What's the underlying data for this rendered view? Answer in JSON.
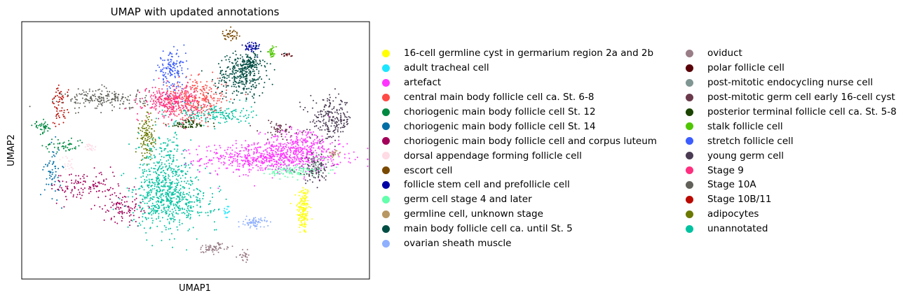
{
  "chart_data": {
    "type": "scatter",
    "title": "UMAP with updated annotations",
    "xlabel": "UMAP1",
    "ylabel": "UMAP2",
    "xlim": [
      0,
      100
    ],
    "ylim": [
      0,
      100
    ],
    "ticks": false,
    "legend_placement": "right",
    "legend_columns": 2,
    "series": [
      {
        "name": "16-cell germline cyst in germarium region 2a and 2b",
        "color": "#ffff00",
        "clusters": [
          {
            "x": 81,
            "y": 27,
            "sx": 0.9,
            "sy": 5,
            "n": 160
          }
        ]
      },
      {
        "name": "adult tracheal cell",
        "color": "#1ce6ff",
        "clusters": [
          {
            "x": 59,
            "y": 26,
            "sx": 0.5,
            "sy": 1.5,
            "n": 15
          }
        ]
      },
      {
        "name": "artefact",
        "color": "#ff34ff",
        "clusters": [
          {
            "x": 72,
            "y": 47,
            "sx": 10,
            "sy": 2.8,
            "n": 700
          },
          {
            "x": 80,
            "y": 53,
            "sx": 5,
            "sy": 3,
            "n": 200
          }
        ]
      },
      {
        "name": "central main body follicle cell ca. St. 6-8",
        "color": "#ff4a46",
        "clusters": [
          {
            "x": 50,
            "y": 70,
            "sx": 4.5,
            "sy": 4,
            "n": 300
          }
        ]
      },
      {
        "name": "choriogenic main body follicle cell St. 12",
        "color": "#008941",
        "clusters": [
          {
            "x": 6,
            "y": 59,
            "sx": 1.4,
            "sy": 1.2,
            "n": 40
          },
          {
            "x": 12,
            "y": 52,
            "sx": 3,
            "sy": 1.5,
            "n": 50
          }
        ]
      },
      {
        "name": "choriogenic main body follicle cell St. 14",
        "color": "#006fa6",
        "clusters": [
          {
            "x": 9,
            "y": 42,
            "sx": 1.2,
            "sy": 5,
            "n": 60
          }
        ]
      },
      {
        "name": "choriogenic main body follicle cell and corpus luteum",
        "color": "#a30059",
        "clusters": [
          {
            "x": 18,
            "y": 36,
            "sx": 5,
            "sy": 3,
            "n": 120
          },
          {
            "x": 29,
            "y": 28,
            "sx": 3,
            "sy": 3,
            "n": 100
          }
        ]
      },
      {
        "name": "dorsal appendage forming follicle cell",
        "color": "#ffdbe5",
        "clusters": [
          {
            "x": 20,
            "y": 51,
            "sx": 0.8,
            "sy": 0.8,
            "n": 20
          },
          {
            "x": 13,
            "y": 45,
            "sx": 1,
            "sy": 1.5,
            "n": 20
          }
        ]
      },
      {
        "name": "escort cell",
        "color": "#7a4900",
        "clusters": [
          {
            "x": 60,
            "y": 95,
            "sx": 1.2,
            "sy": 1,
            "n": 40
          }
        ]
      },
      {
        "name": "follicle stem cell and prefollicle cell",
        "color": "#0000a6",
        "clusters": [
          {
            "x": 66,
            "y": 90,
            "sx": 1.3,
            "sy": 1.4,
            "n": 50
          }
        ]
      },
      {
        "name": "germ cell stage 4 and later",
        "color": "#63ffac",
        "clusters": [
          {
            "x": 79,
            "y": 42,
            "sx": 4,
            "sy": 1.2,
            "n": 120
          }
        ]
      },
      {
        "name": "germline cell, unknown stage",
        "color": "#b79762",
        "clusters": [
          {
            "x": 90,
            "y": 49,
            "sx": 0.8,
            "sy": 0.7,
            "n": 20
          }
        ]
      },
      {
        "name": "main body follicle cell ca. until St. 5",
        "color": "#004d43",
        "clusters": [
          {
            "x": 63,
            "y": 79,
            "sx": 3.5,
            "sy": 4,
            "n": 300
          },
          {
            "x": 66,
            "y": 84,
            "sx": 2,
            "sy": 2,
            "n": 100
          }
        ]
      },
      {
        "name": "ovarian sheath muscle",
        "color": "#8fb0ff",
        "clusters": [
          {
            "x": 67,
            "y": 22,
            "sx": 1.5,
            "sy": 1,
            "n": 70
          }
        ]
      },
      {
        "name": "oviduct",
        "color": "#997d87",
        "clusters": [
          {
            "x": 55,
            "y": 12,
            "sx": 2.5,
            "sy": 1,
            "n": 60
          },
          {
            "x": 64,
            "y": 9,
            "sx": 0.9,
            "sy": 1.2,
            "n": 25
          }
        ]
      },
      {
        "name": "polar follicle cell",
        "color": "#5a0007",
        "clusters": [
          {
            "x": 76,
            "y": 87,
            "sx": 0.8,
            "sy": 0.4,
            "n": 12
          }
        ]
      },
      {
        "name": "post-mitotic endocycling nurse cell",
        "color": "#809693",
        "clusters": [
          {
            "x": 85,
            "y": 46,
            "sx": 1.5,
            "sy": 1.5,
            "n": 40
          }
        ]
      },
      {
        "name": "post-mitotic germ cell early 16-cell cyst",
        "color": "#6a3a4c",
        "clusters": [
          {
            "x": 74,
            "y": 58,
            "sx": 3,
            "sy": 2,
            "n": 50
          }
        ]
      },
      {
        "name": "posterior terminal follicle cell ca. St. 5-8",
        "color": "#1b4400",
        "clusters": [
          {
            "x": 48,
            "y": 60,
            "sx": 3,
            "sy": 1,
            "n": 60
          }
        ]
      },
      {
        "name": "stalk follicle cell",
        "color": "#4fc601",
        "clusters": [
          {
            "x": 72,
            "y": 88,
            "sx": 0.6,
            "sy": 1,
            "n": 30
          }
        ]
      },
      {
        "name": "stretch follicle cell",
        "color": "#3b5dff",
        "clusters": [
          {
            "x": 43,
            "y": 81,
            "sx": 2,
            "sy": 3.5,
            "n": 140
          }
        ]
      },
      {
        "name": "young germ cell",
        "color": "#4a3b53",
        "clusters": [
          {
            "x": 89,
            "y": 62,
            "sx": 3,
            "sy": 4,
            "n": 220
          },
          {
            "x": 84,
            "y": 42,
            "sx": 2.5,
            "sy": 2.5,
            "n": 80
          }
        ]
      },
      {
        "name": "Stage 9",
        "color": "#ff2f80",
        "clusters": [
          {
            "x": 43,
            "y": 69,
            "sx": 4,
            "sy": 3,
            "n": 300
          }
        ]
      },
      {
        "name": "Stage 10A",
        "color": "#61615a",
        "clusters": [
          {
            "x": 24,
            "y": 70,
            "sx": 6,
            "sy": 2,
            "n": 200
          }
        ]
      },
      {
        "name": "Stage 10B/11",
        "color": "#ba0900",
        "clusters": [
          {
            "x": 11,
            "y": 67,
            "sx": 1.2,
            "sy": 4,
            "n": 60
          }
        ]
      },
      {
        "name": "adipocytes",
        "color": "#6b7900",
        "clusters": [
          {
            "x": 36,
            "y": 55,
            "sx": 1.2,
            "sy": 4.5,
            "n": 120
          }
        ]
      },
      {
        "name": "unannotated",
        "color": "#00c2a0",
        "clusters": [
          {
            "x": 41,
            "y": 38,
            "sx": 4,
            "sy": 9,
            "n": 500
          },
          {
            "x": 44,
            "y": 30,
            "sx": 6,
            "sy": 4,
            "n": 300
          },
          {
            "x": 56,
            "y": 64,
            "sx": 5,
            "sy": 2,
            "n": 150
          }
        ]
      }
    ]
  }
}
